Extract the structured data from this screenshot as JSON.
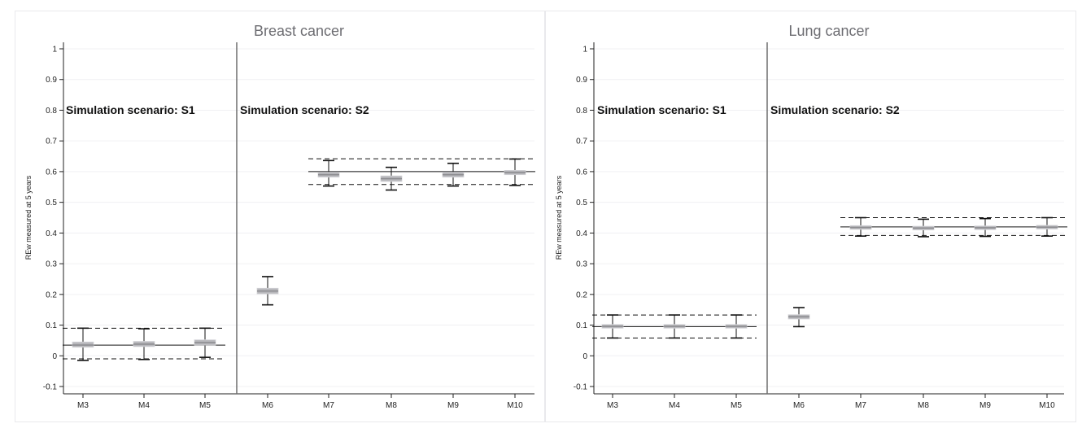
{
  "colors": {
    "panel_border": "#e9e9ec",
    "gridline": "#f0f0f3",
    "axis": "#222222",
    "divider": "#6e6e6e",
    "box": "#b8b8bc",
    "median": "#8e8e92",
    "title": "#6d6d72"
  },
  "chart_data": [
    {
      "type": "box",
      "title": "Breast cancer",
      "ylabel": "REw measured at 5 years",
      "ylim": [
        -0.1,
        1
      ],
      "yticks": [
        "-0.1",
        "0",
        "0.1",
        "0.2",
        "0.3",
        "0.4",
        "0.5",
        "0.6",
        "0.7",
        "0.8",
        "0.9",
        "1"
      ],
      "categories": [
        "M3",
        "M4",
        "M5",
        "M6",
        "M7",
        "M8",
        "M9",
        "M10"
      ],
      "scenarios": [
        {
          "label": "Simulation scenario: S1",
          "categories": [
            "M3",
            "M4",
            "M5"
          ],
          "reference": 0.035,
          "reference_band": [
            -0.01,
            0.09
          ]
        },
        {
          "label": "Simulation scenario: S2",
          "categories": [
            "M6",
            "M7",
            "M8",
            "M9",
            "M10"
          ],
          "reference": 0.6,
          "reference_band": [
            0.558,
            0.642
          ],
          "reference_categories": [
            "M7",
            "M8",
            "M9",
            "M10"
          ]
        }
      ],
      "boxes": [
        {
          "category": "M3",
          "low": -0.015,
          "q1": 0.028,
          "median": 0.035,
          "q3": 0.045,
          "high": 0.09
        },
        {
          "category": "M4",
          "low": -0.012,
          "q1": 0.03,
          "median": 0.038,
          "q3": 0.047,
          "high": 0.088
        },
        {
          "category": "M5",
          "low": -0.005,
          "q1": 0.035,
          "median": 0.043,
          "q3": 0.052,
          "high": 0.09
        },
        {
          "category": "M6",
          "low": 0.166,
          "q1": 0.202,
          "median": 0.211,
          "q3": 0.22,
          "high": 0.258
        },
        {
          "category": "M7",
          "low": 0.553,
          "q1": 0.582,
          "median": 0.59,
          "q3": 0.598,
          "high": 0.636
        },
        {
          "category": "M8",
          "low": 0.54,
          "q1": 0.568,
          "median": 0.577,
          "q3": 0.586,
          "high": 0.614
        },
        {
          "category": "M9",
          "low": 0.553,
          "q1": 0.582,
          "median": 0.59,
          "q3": 0.598,
          "high": 0.627
        },
        {
          "category": "M10",
          "low": 0.555,
          "q1": 0.59,
          "median": 0.597,
          "q3": 0.604,
          "high": 0.641
        }
      ]
    },
    {
      "type": "box",
      "title": "Lung cancer",
      "ylabel": "REw measured at 5 years",
      "ylim": [
        -0.1,
        1
      ],
      "yticks": [
        "-0.1",
        "0",
        "0.1",
        "0.2",
        "0.3",
        "0.4",
        "0.5",
        "0.6",
        "0.7",
        "0.8",
        "0.9",
        "1"
      ],
      "categories": [
        "M3",
        "M4",
        "M5",
        "M6",
        "M7",
        "M8",
        "M9",
        "M10"
      ],
      "scenarios": [
        {
          "label": "Simulation scenario: S1",
          "categories": [
            "M3",
            "M4",
            "M5"
          ],
          "reference": 0.095,
          "reference_band": [
            0.058,
            0.133
          ]
        },
        {
          "label": "Simulation scenario: S2",
          "categories": [
            "M6",
            "M7",
            "M8",
            "M9",
            "M10"
          ],
          "reference": 0.42,
          "reference_band": [
            0.392,
            0.45
          ],
          "reference_categories": [
            "M7",
            "M8",
            "M9",
            "M10"
          ]
        }
      ],
      "boxes": [
        {
          "category": "M3",
          "low": 0.058,
          "q1": 0.09,
          "median": 0.096,
          "q3": 0.102,
          "high": 0.133
        },
        {
          "category": "M4",
          "low": 0.058,
          "q1": 0.09,
          "median": 0.096,
          "q3": 0.102,
          "high": 0.133
        },
        {
          "category": "M5",
          "low": 0.058,
          "q1": 0.09,
          "median": 0.096,
          "q3": 0.102,
          "high": 0.133
        },
        {
          "category": "M6",
          "low": 0.095,
          "q1": 0.12,
          "median": 0.127,
          "q3": 0.134,
          "high": 0.157
        },
        {
          "category": "M7",
          "low": 0.39,
          "q1": 0.412,
          "median": 0.418,
          "q3": 0.424,
          "high": 0.45
        },
        {
          "category": "M8",
          "low": 0.388,
          "q1": 0.41,
          "median": 0.416,
          "q3": 0.422,
          "high": 0.445
        },
        {
          "category": "M9",
          "low": 0.389,
          "q1": 0.411,
          "median": 0.417,
          "q3": 0.423,
          "high": 0.447
        },
        {
          "category": "M10",
          "low": 0.39,
          "q1": 0.413,
          "median": 0.419,
          "q3": 0.425,
          "high": 0.45
        }
      ]
    }
  ]
}
